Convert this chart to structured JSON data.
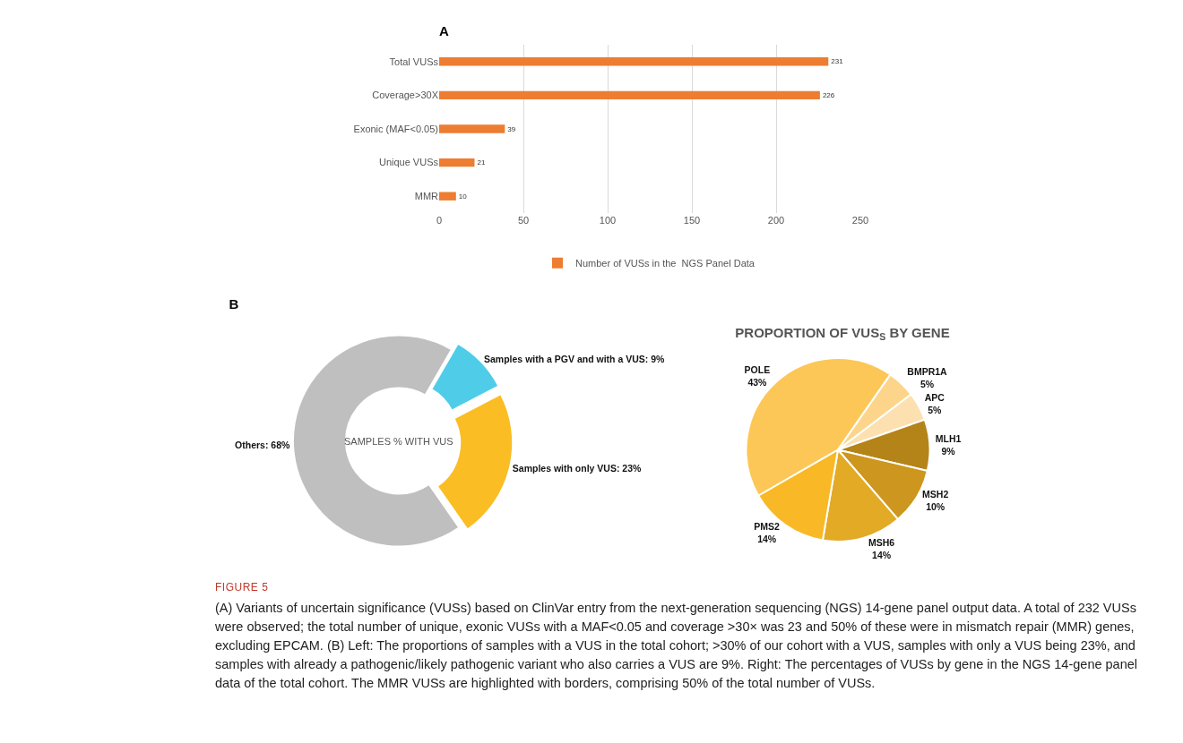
{
  "chart_data": [
    {
      "type": "bar",
      "title": "A",
      "orientation": "horizontal",
      "categories": [
        "Total VUSs",
        "Coverage>30X",
        "Exonic (MAF<0.05)",
        "Unique VUSs",
        "MMR"
      ],
      "series": [
        {
          "name": "Number of VUSs in the  NGS Panel Data",
          "color": "#ed7d31",
          "values": [
            231,
            226,
            39,
            21,
            10
          ]
        }
      ],
      "xlim": [
        0,
        250
      ],
      "xticks": [
        0,
        50,
        100,
        150,
        200,
        250
      ],
      "grid": "x",
      "legend": "bottom",
      "data_labels": true,
      "annotations": [
        "FIGURE 5",
        "(A) Variants of uncertain significance (VUSs) based on ClinVar entry from the next-generation sequencing (NGS) 14-gene panel output data. A total of 232 VUSs were observed; the total number of unique, exonic VUSs with a MAF<0.05 and coverage >30× was 23 and 50% of these were in mismatch repair (MMR) genes, excluding EPCAM. (B) Left: The proportions of samples with a VUS in the total cohort; >30% of our cohort with a VUS, samples with only a VUS being 23%, and samples with already a pathogenic/likely pathogenic variant who also carries a VUS are 9%. Right: The percentages of VUSs by gene in the NGS 14-gene panel data of the total cohort. The MMR VUSs are highlighted with borders, comprising 50% of the total number of VUSs."
      ]
    },
    {
      "type": "donut",
      "title": "B",
      "categories": [
        "Samples with a PGV and with a VUS",
        "Samples with only VUS",
        "Others"
      ],
      "values": [
        9,
        23,
        68
      ],
      "value_labels": [
        "9%",
        "23%",
        "68%"
      ],
      "colors": [
        "#4fcde8",
        "#fbbd24",
        "#bfbfbf"
      ],
      "annotations": [
        "SAMPLES % WITH VUS"
      ]
    },
    {
      "type": "pie",
      "title": "PROPORTION OF VUS$_{S}$ BY GENE",
      "categories": [
        "POLE",
        "BMPR1A",
        "APC",
        "MLH1",
        "MSH2",
        "MSH6",
        "PMS2"
      ],
      "values": [
        43,
        5,
        5,
        9,
        10,
        14,
        14
      ],
      "value_labels": [
        "43%",
        "5%",
        "5%",
        "9%",
        "10%",
        "14%",
        "14%"
      ],
      "colors": [
        "#fcc757",
        "#fdd58a",
        "#fde0b0",
        "#b58418",
        "#cd961e",
        "#e2aa25",
        "#f9b825"
      ]
    }
  ]
}
